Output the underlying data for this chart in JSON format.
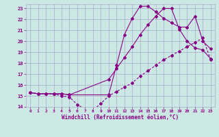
{
  "xlabel": "Windchill (Refroidissement éolien,°C)",
  "background_color": "#cce8e4",
  "line_color": "#880088",
  "grid_color": "#aaaacc",
  "xlim": [
    -0.5,
    23.5
  ],
  "ylim": [
    14,
    23.4
  ],
  "xticks": [
    0,
    1,
    2,
    3,
    4,
    5,
    6,
    7,
    8,
    9,
    10,
    11,
    12,
    13,
    14,
    15,
    16,
    17,
    18,
    19,
    20,
    21,
    22,
    23
  ],
  "yticks": [
    14,
    15,
    16,
    17,
    18,
    19,
    20,
    21,
    22,
    23
  ],
  "line1_x": [
    0,
    1,
    2,
    3,
    4,
    5,
    10,
    11,
    12,
    13,
    14,
    15,
    16,
    17,
    18,
    19,
    20,
    21,
    22,
    23
  ],
  "line1_y": [
    15.3,
    15.2,
    15.2,
    15.2,
    15.2,
    15.1,
    15.1,
    17.8,
    20.6,
    22.1,
    23.2,
    23.2,
    22.7,
    22.1,
    21.7,
    21.3,
    21.3,
    22.3,
    20.0,
    19.3
  ],
  "line2_x": [
    0,
    1,
    2,
    3,
    4,
    5,
    6,
    7,
    8,
    9,
    10,
    11,
    12,
    13,
    14,
    15,
    16,
    17,
    18,
    19,
    20,
    21,
    22,
    23
  ],
  "line2_y": [
    15.3,
    15.2,
    15.2,
    15.2,
    15.0,
    14.9,
    14.2,
    13.8,
    13.7,
    14.3,
    15.0,
    15.4,
    15.8,
    16.2,
    16.8,
    17.3,
    17.8,
    18.3,
    18.7,
    19.1,
    19.5,
    19.9,
    20.3,
    18.3
  ],
  "line3_x": [
    0,
    1,
    2,
    3,
    4,
    5,
    10,
    11,
    12,
    13,
    14,
    15,
    16,
    17,
    18,
    19,
    20,
    21,
    22,
    23
  ],
  "line3_y": [
    15.3,
    15.2,
    15.2,
    15.2,
    15.2,
    15.1,
    16.5,
    17.5,
    18.5,
    19.5,
    20.6,
    21.5,
    22.3,
    23.0,
    23.0,
    21.1,
    20.0,
    19.4,
    19.2,
    18.4
  ]
}
